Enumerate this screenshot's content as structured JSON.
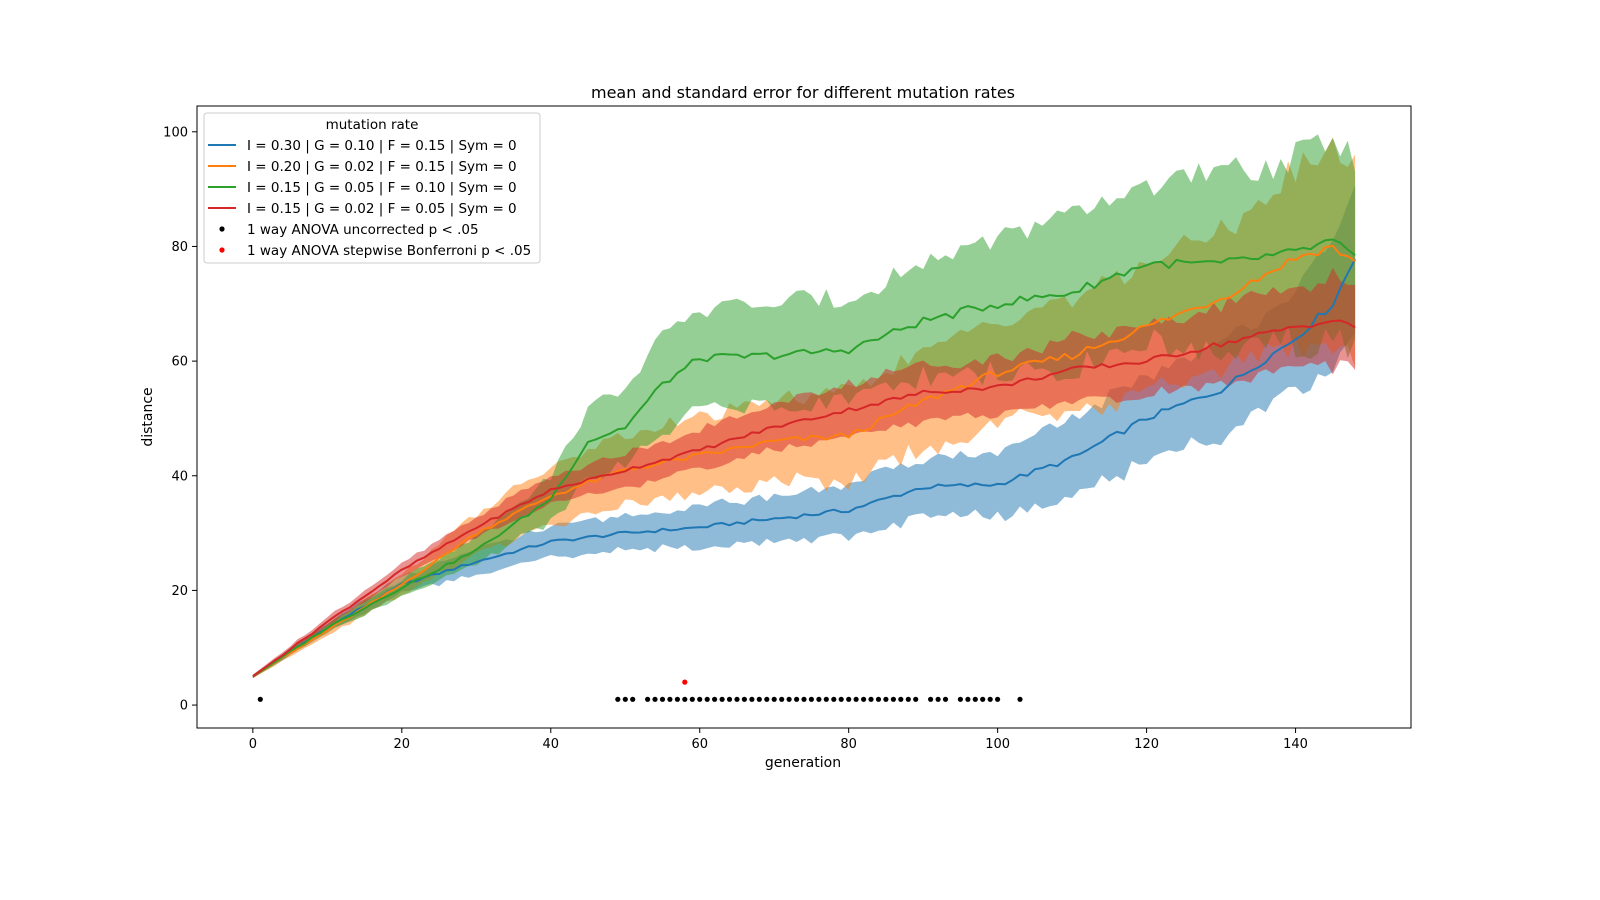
{
  "chart_data": {
    "type": "line",
    "title": "mean and standard error for different mutation rates",
    "xlabel": "generation",
    "ylabel": "distance",
    "xlim": [
      -7.5,
      155.5
    ],
    "ylim": [
      -4,
      104.5
    ],
    "xticks": [
      0,
      20,
      40,
      60,
      80,
      100,
      120,
      140
    ],
    "yticks": [
      0,
      20,
      40,
      60,
      80,
      100
    ],
    "grid": false,
    "legend": {
      "title": "mutation rate",
      "placement": "upper left"
    },
    "series": [
      {
        "name": "I = 0.30 | G = 0.10 | F = 0.15 | Sym = 0",
        "color": "#1f77b4",
        "x": [
          0,
          10,
          20,
          30,
          40,
          50,
          60,
          70,
          80,
          90,
          100,
          110,
          120,
          130,
          140,
          145,
          148
        ],
        "y": [
          5,
          13.5,
          21,
          25,
          28.5,
          30,
          31,
          32.5,
          34,
          38,
          38.5,
          43,
          50,
          55,
          64,
          70,
          78
        ],
        "err": [
          0.3,
          0.8,
          1.5,
          2.2,
          2.5,
          3,
          3.5,
          4,
          4.5,
          5,
          5.5,
          6.5,
          7.5,
          8,
          9,
          10,
          12
        ]
      },
      {
        "name": "I = 0.20 | G = 0.02 | F = 0.15 | Sym = 0",
        "color": "#ff7f0e",
        "x": [
          0,
          10,
          20,
          30,
          40,
          50,
          60,
          70,
          80,
          90,
          100,
          110,
          120,
          130,
          140,
          145,
          148
        ],
        "y": [
          5,
          13,
          21,
          30,
          36.5,
          41,
          43.5,
          46,
          47,
          53,
          58,
          61,
          66,
          71,
          78,
          80,
          77
        ],
        "err": [
          0.3,
          1,
          1.8,
          3.5,
          5,
          6,
          6.5,
          7,
          8,
          8.5,
          9,
          10,
          11,
          12,
          15,
          17,
          18
        ]
      },
      {
        "name": "I = 0.15 | G = 0.05 | F = 0.10 | Sym = 0",
        "color": "#2ca02c",
        "x": [
          0,
          10,
          20,
          30,
          40,
          45,
          50,
          55,
          60,
          70,
          80,
          90,
          100,
          110,
          120,
          130,
          140,
          145,
          148
        ],
        "y": [
          5,
          13.5,
          20.5,
          27,
          36,
          46,
          48.5,
          56,
          60.5,
          61,
          62,
          67,
          70,
          72,
          77,
          77,
          79,
          81,
          78
        ],
        "err": [
          0.3,
          0.8,
          1.5,
          2.5,
          4,
          6,
          7,
          8,
          8.5,
          9,
          9,
          10,
          12,
          13,
          14,
          15,
          16,
          18,
          17
        ]
      },
      {
        "name": "I = 0.15 | G = 0.02 | F = 0.05 | Sym = 0",
        "color": "#d62728",
        "x": [
          0,
          10,
          20,
          30,
          40,
          50,
          60,
          70,
          80,
          90,
          100,
          110,
          120,
          130,
          140,
          145,
          148
        ],
        "y": [
          5,
          14.5,
          23.5,
          31,
          37.5,
          41,
          44.5,
          48.5,
          51.5,
          54.5,
          55.5,
          58.5,
          60,
          63,
          66,
          67,
          66
        ],
        "err": [
          0.3,
          0.8,
          1.2,
          1.8,
          2.5,
          3,
          3.5,
          4,
          4.5,
          5,
          5,
          5.5,
          6,
          7,
          7,
          8,
          8
        ]
      }
    ],
    "markers": [
      {
        "name": "1 way ANOVA uncorrected p < .05",
        "color": "#000000",
        "y": 1,
        "x": [
          1,
          49,
          50,
          51,
          53,
          54,
          55,
          56,
          57,
          58,
          59,
          60,
          61,
          62,
          63,
          64,
          65,
          66,
          67,
          68,
          69,
          70,
          71,
          72,
          73,
          74,
          75,
          76,
          77,
          78,
          79,
          80,
          81,
          82,
          83,
          84,
          85,
          86,
          87,
          88,
          89,
          91,
          92,
          93,
          95,
          96,
          97,
          98,
          99,
          100,
          103
        ]
      },
      {
        "name": "1 way ANOVA stepwise Bonferroni p < .05",
        "color": "#ff0000",
        "y": 4,
        "x": [
          58
        ]
      }
    ]
  }
}
